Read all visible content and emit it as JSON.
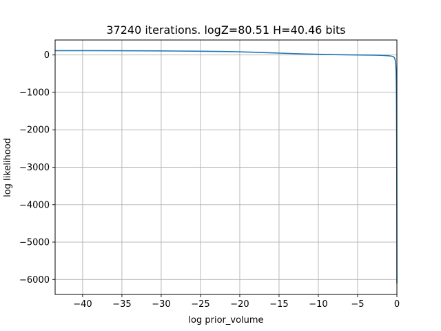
{
  "chart_data": {
    "type": "line",
    "title": "37240 iterations. logZ=80.51 H=40.46 bits",
    "xlabel": "log prior_volume",
    "ylabel": "log likelihood",
    "xlim": [
      -43.5,
      0
    ],
    "ylim": [
      -6400,
      400
    ],
    "xticks": [
      -40,
      -35,
      -30,
      -25,
      -20,
      -15,
      -10,
      -5,
      0
    ],
    "xtick_labels": [
      "−40",
      "−35",
      "−30",
      "−25",
      "−20",
      "−15",
      "−10",
      "−5",
      "0"
    ],
    "yticks": [
      0,
      -1000,
      -2000,
      -3000,
      -4000,
      -5000,
      -6000
    ],
    "ytick_labels": [
      "0",
      "−1000",
      "−2000",
      "−3000",
      "−4000",
      "−5000",
      "−6000"
    ],
    "grid": true,
    "series": [
      {
        "color": "#1f77b4",
        "x": [
          -43.5,
          -40,
          -35,
          -30,
          -25,
          -22,
          -20,
          -18,
          -15,
          -12,
          -10,
          -8,
          -5,
          -3,
          -2,
          -1,
          -0.6,
          -0.4,
          -0.3,
          -0.2,
          -0.15,
          -0.1,
          -0.07,
          -0.05,
          -0.03,
          -0.02,
          -0.01,
          0
        ],
        "y": [
          116,
          115,
          113,
          108,
          100,
          92,
          84,
          72,
          50,
          28,
          18,
          10,
          0,
          -5,
          -10,
          -22,
          -35,
          -55,
          -80,
          -150,
          -250,
          -450,
          -800,
          -1300,
          -2200,
          -3000,
          -4200,
          -6100
        ]
      }
    ]
  }
}
